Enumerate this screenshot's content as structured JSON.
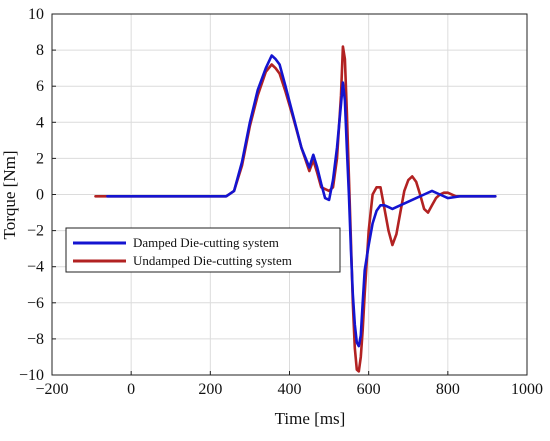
{
  "chart_data": {
    "type": "line",
    "title": "",
    "xlabel": "Time [ms]",
    "ylabel": "Torque [Nm]",
    "xlim": [
      -200,
      1000
    ],
    "ylim": [
      -10,
      10
    ],
    "xticks": [
      -200,
      0,
      200,
      400,
      600,
      800,
      1000
    ],
    "yticks": [
      -10,
      -8,
      -6,
      -4,
      -2,
      0,
      2,
      4,
      6,
      8,
      10
    ],
    "grid": true,
    "legend_position": "left-middle",
    "series": [
      {
        "name": "Damped Die-cutting system",
        "color": "#1414d0",
        "x": [
          -60,
          0,
          50,
          100,
          150,
          200,
          240,
          260,
          280,
          300,
          320,
          340,
          355,
          365,
          375,
          390,
          410,
          430,
          450,
          460,
          470,
          480,
          490,
          500,
          510,
          520,
          530,
          535,
          540,
          545,
          550,
          555,
          560,
          565,
          570,
          575,
          580,
          585,
          590,
          600,
          610,
          620,
          630,
          640,
          650,
          660,
          680,
          700,
          720,
          740,
          760,
          780,
          800,
          830,
          860,
          890,
          920
        ],
        "y": [
          -0.1,
          -0.1,
          -0.1,
          -0.1,
          -0.1,
          -0.1,
          -0.1,
          0.2,
          1.8,
          4.0,
          5.8,
          7.0,
          7.7,
          7.5,
          7.2,
          6.0,
          4.3,
          2.6,
          1.5,
          2.2,
          1.5,
          0.6,
          -0.2,
          -0.3,
          0.8,
          2.6,
          5.0,
          6.2,
          5.2,
          2.5,
          0.0,
          -3.0,
          -5.5,
          -7.2,
          -8.2,
          -8.4,
          -7.8,
          -6.0,
          -4.2,
          -2.8,
          -1.6,
          -0.9,
          -0.6,
          -0.6,
          -0.7,
          -0.8,
          -0.6,
          -0.4,
          -0.2,
          0.0,
          0.2,
          0.0,
          -0.2,
          -0.1,
          -0.1,
          -0.1,
          -0.1
        ]
      },
      {
        "name": "Undamped Die-cutting system",
        "color": "#b22222",
        "x": [
          -90,
          -60,
          0,
          50,
          100,
          150,
          200,
          240,
          260,
          280,
          300,
          320,
          340,
          355,
          365,
          375,
          390,
          410,
          430,
          450,
          460,
          470,
          480,
          490,
          500,
          510,
          520,
          530,
          535,
          540,
          545,
          550,
          555,
          560,
          565,
          570,
          575,
          580,
          585,
          590,
          600,
          610,
          620,
          630,
          640,
          650,
          660,
          670,
          680,
          690,
          700,
          710,
          720,
          730,
          740,
          750,
          760,
          770,
          780,
          790,
          800,
          820,
          840,
          870,
          900,
          920
        ],
        "y": [
          -0.1,
          -0.1,
          -0.1,
          -0.1,
          -0.1,
          -0.1,
          -0.1,
          -0.1,
          0.2,
          1.6,
          3.8,
          5.5,
          6.8,
          7.2,
          7.0,
          6.7,
          5.7,
          4.2,
          2.6,
          1.3,
          1.9,
          1.2,
          0.4,
          0.3,
          0.2,
          0.4,
          2.0,
          5.5,
          8.2,
          7.5,
          4.5,
          1.0,
          -2.5,
          -6.0,
          -8.5,
          -9.7,
          -9.8,
          -9.0,
          -7.5,
          -5.5,
          -2.0,
          0.0,
          0.4,
          0.4,
          -0.8,
          -2.0,
          -2.8,
          -2.2,
          -1.0,
          0.2,
          0.8,
          1.0,
          0.7,
          0.0,
          -0.8,
          -1.0,
          -0.6,
          -0.2,
          0.0,
          0.1,
          0.1,
          -0.1,
          -0.1,
          -0.1,
          -0.1,
          -0.1
        ]
      }
    ]
  }
}
